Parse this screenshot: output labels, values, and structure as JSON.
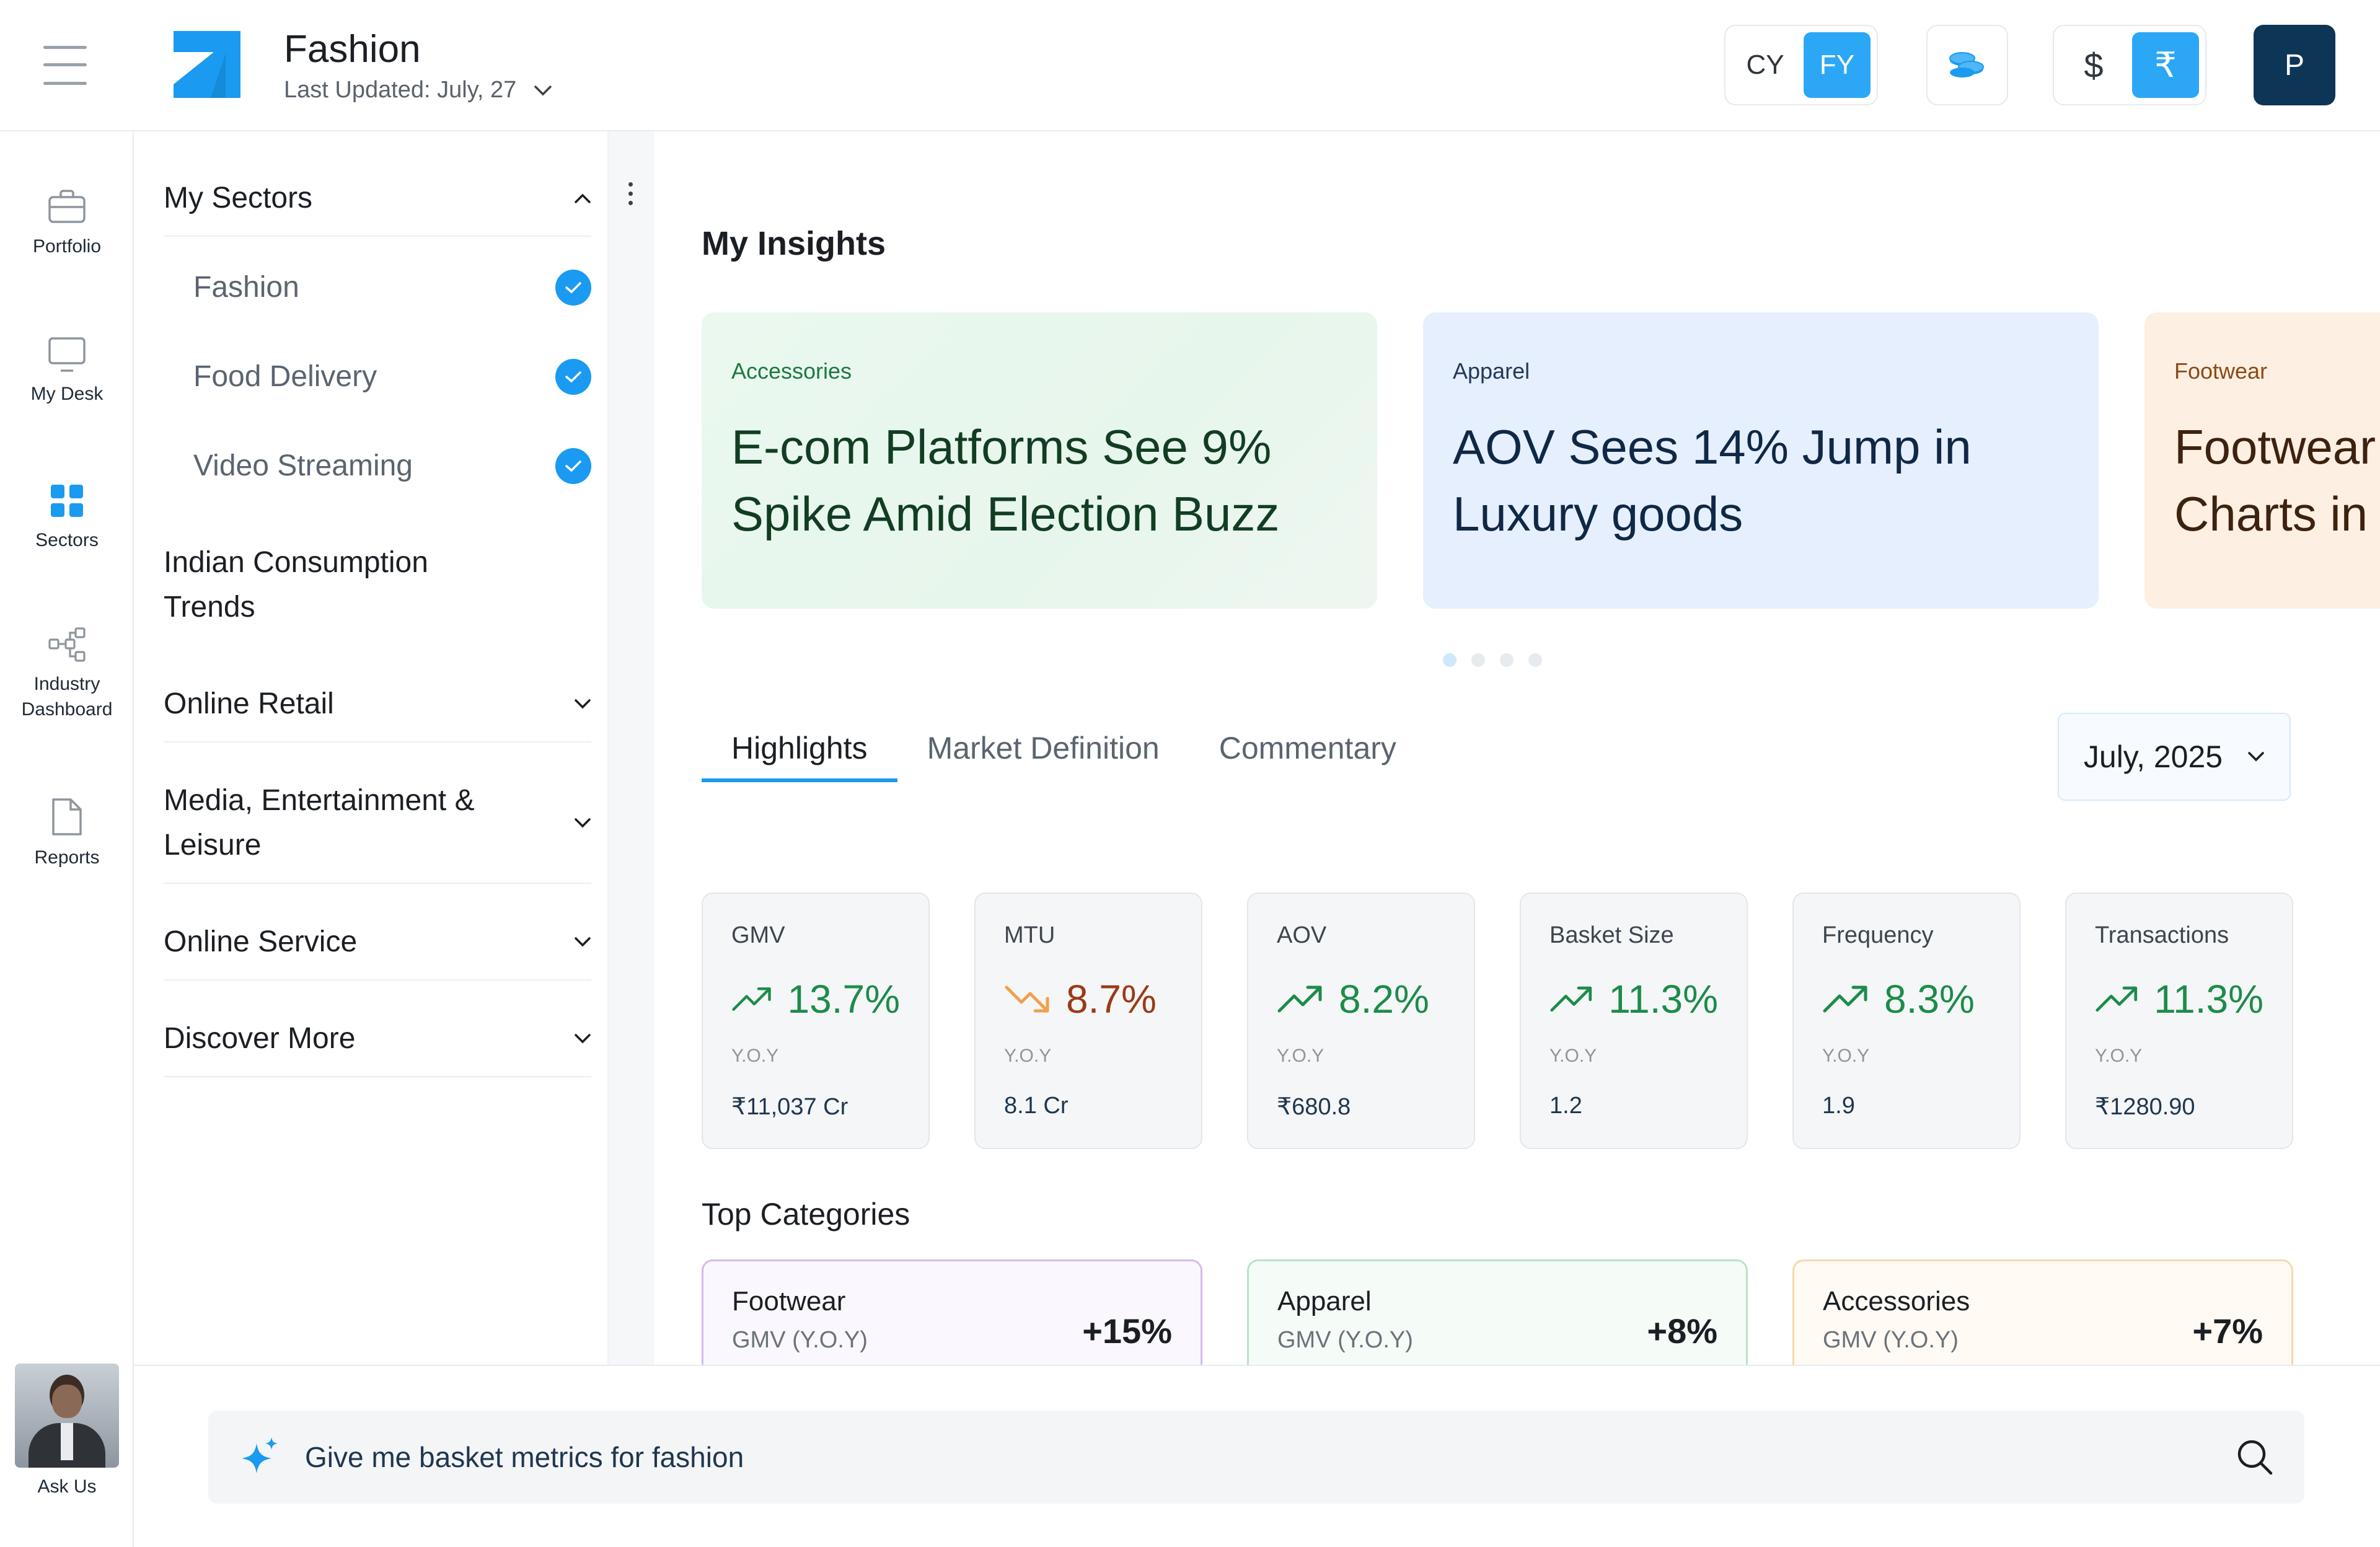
{
  "header": {
    "title": "Fashion",
    "last_updated": "Last Updated: July, 27",
    "year_toggle": {
      "options": [
        "CY",
        "FY"
      ],
      "selected": "FY"
    },
    "currency_toggle": {
      "options": [
        "$",
        "₹"
      ],
      "selected": "₹"
    },
    "profile_initial": "P"
  },
  "rail": [
    {
      "label": "Portfolio",
      "icon": "briefcase-icon"
    },
    {
      "label": "My Desk",
      "icon": "monitor-icon"
    },
    {
      "label": "Sectors",
      "icon": "grid-icon",
      "active": true
    },
    {
      "label": "Industry Dashboard",
      "icon": "hierarchy-icon"
    },
    {
      "label": "Reports",
      "icon": "document-icon"
    }
  ],
  "ask_us": "Ask Us",
  "sectors_panel": {
    "my_sectors": "My Sectors",
    "my_sector_items": [
      "Fashion",
      "Food Delivery",
      "Video Streaming"
    ],
    "indian_consumption": "Indian Consumption Trends",
    "groups": [
      "Online Retail",
      "Media, Entertainment & Leisure",
      "Online Service",
      "Discover More"
    ]
  },
  "insights": {
    "title": "My Insights",
    "cards": [
      {
        "tag": "Accessories",
        "headline": "E-com Platforms See 9% Spike Amid Election Buzz"
      },
      {
        "tag": "Apparel",
        "headline": "AOV Sees 14% Jump in Luxury goods"
      },
      {
        "tag": "Footwear",
        "headline": "Footwear Charts in"
      }
    ],
    "active_dot": 0,
    "dot_count": 4
  },
  "tabs": [
    "Highlights",
    "Market Definition",
    "Commentary"
  ],
  "active_tab": "Highlights",
  "month_select": "July, 2025",
  "metrics": [
    {
      "label": "GMV",
      "value": "13.7%",
      "trend": "up",
      "yoy": "Y.O.Y",
      "abs": "₹11,037 Cr"
    },
    {
      "label": "MTU",
      "value": "8.7%",
      "trend": "down",
      "yoy": "Y.O.Y",
      "abs": "8.1 Cr"
    },
    {
      "label": "AOV",
      "value": "8.2%",
      "trend": "up",
      "yoy": "Y.O.Y",
      "abs": "₹680.8"
    },
    {
      "label": "Basket Size",
      "value": "11.3%",
      "trend": "up",
      "yoy": "Y.O.Y",
      "abs": "1.2"
    },
    {
      "label": "Frequency",
      "value": "8.3%",
      "trend": "up",
      "yoy": "Y.O.Y",
      "abs": "1.9"
    },
    {
      "label": "Transactions",
      "value": "11.3%",
      "trend": "up",
      "yoy": "Y.O.Y",
      "abs": "₹1280.90"
    }
  ],
  "top_categories": {
    "title": "Top Categories",
    "items": [
      {
        "name": "Footwear",
        "sub": "GMV (Y.O.Y)",
        "value": "+15%"
      },
      {
        "name": "Apparel",
        "sub": "GMV (Y.O.Y)",
        "value": "+8%"
      },
      {
        "name": "Accessories",
        "sub": "GMV (Y.O.Y)",
        "value": "+7%"
      }
    ]
  },
  "prompt": {
    "text": "Give me basket metrics for fashion"
  },
  "colors": {
    "accent": "#1a9af0",
    "positive": "#1c8c4a",
    "negative": "#9a3a16",
    "navy": "#0d3556"
  }
}
